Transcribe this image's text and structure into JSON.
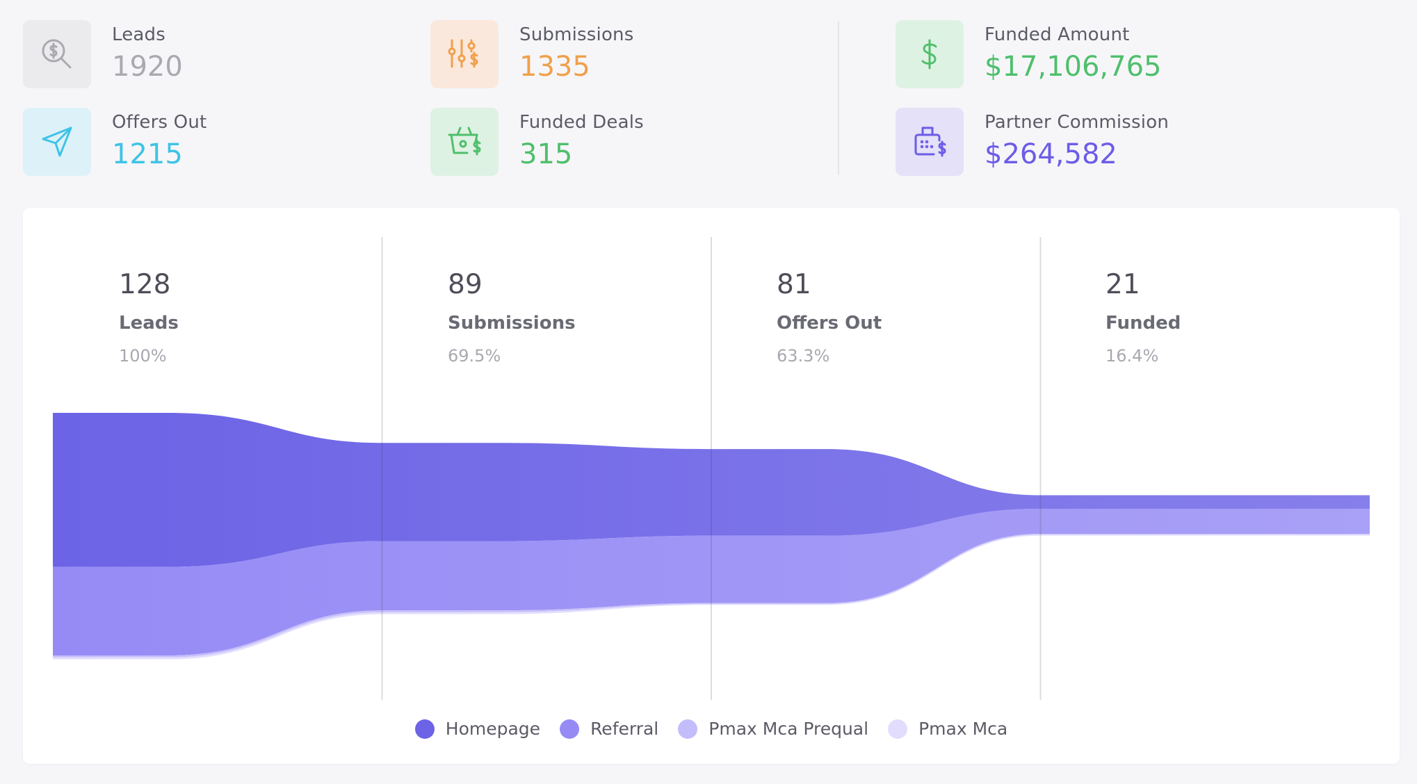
{
  "stats": {
    "leads": {
      "label": "Leads",
      "value": "1920",
      "icon": "search-dollar-icon",
      "color": "#a9a9b0",
      "bg": "#ebebee"
    },
    "offers_out": {
      "label": "Offers Out",
      "value": "1215",
      "icon": "send-icon",
      "color": "#3ec3e6",
      "bg": "#ddf1f8"
    },
    "submissions": {
      "label": "Submissions",
      "value": "1335",
      "icon": "sliders-dollar-icon",
      "color": "#f0a04b",
      "bg": "#fbe8dc"
    },
    "funded_deals": {
      "label": "Funded Deals",
      "value": "315",
      "icon": "basket-dollar-icon",
      "color": "#4fbf6b",
      "bg": "#def2e3"
    },
    "funded_amount": {
      "label": "Funded Amount",
      "value": "$17,106,765",
      "icon": "dollar-icon",
      "color": "#4fbf6b",
      "bg": "#def2e3"
    },
    "partner_commission": {
      "label": "Partner Commission",
      "value": "$264,582",
      "icon": "fax-dollar-icon",
      "color": "#6c5ce7",
      "bg": "#e4e1f8"
    }
  },
  "funnel": {
    "stages": [
      {
        "count": "128",
        "name": "Leads",
        "percent": "100%"
      },
      {
        "count": "89",
        "name": "Submissions",
        "percent": "69.5%"
      },
      {
        "count": "81",
        "name": "Offers Out",
        "percent": "63.3%"
      },
      {
        "count": "21",
        "name": "Funded",
        "percent": "16.4%"
      }
    ]
  },
  "chart_data": {
    "type": "area",
    "categories": [
      "Leads",
      "Submissions",
      "Offers Out",
      "Funded"
    ],
    "series": [
      {
        "name": "Homepage",
        "values": [
          80,
          51,
          45,
          7
        ],
        "color": "#6c63e6"
      },
      {
        "name": "Referral",
        "values": [
          46,
          36,
          35,
          13
        ],
        "color": "#968bf5"
      },
      {
        "name": "Pmax Mca Prequal",
        "values": [
          1,
          1,
          0.5,
          0.5
        ],
        "color": "#c4bdfb"
      },
      {
        "name": "Pmax Mca",
        "values": [
          1,
          1,
          0.5,
          0.5
        ],
        "color": "#e2ddfd"
      }
    ],
    "grid": true,
    "legend_position": "bottom-center"
  },
  "legend": [
    {
      "label": "Homepage",
      "color": "#6c63e6"
    },
    {
      "label": "Referral",
      "color": "#968bf5"
    },
    {
      "label": "Pmax Mca Prequal",
      "color": "#c4bdfb"
    },
    {
      "label": "Pmax Mca",
      "color": "#e2ddfd"
    }
  ]
}
